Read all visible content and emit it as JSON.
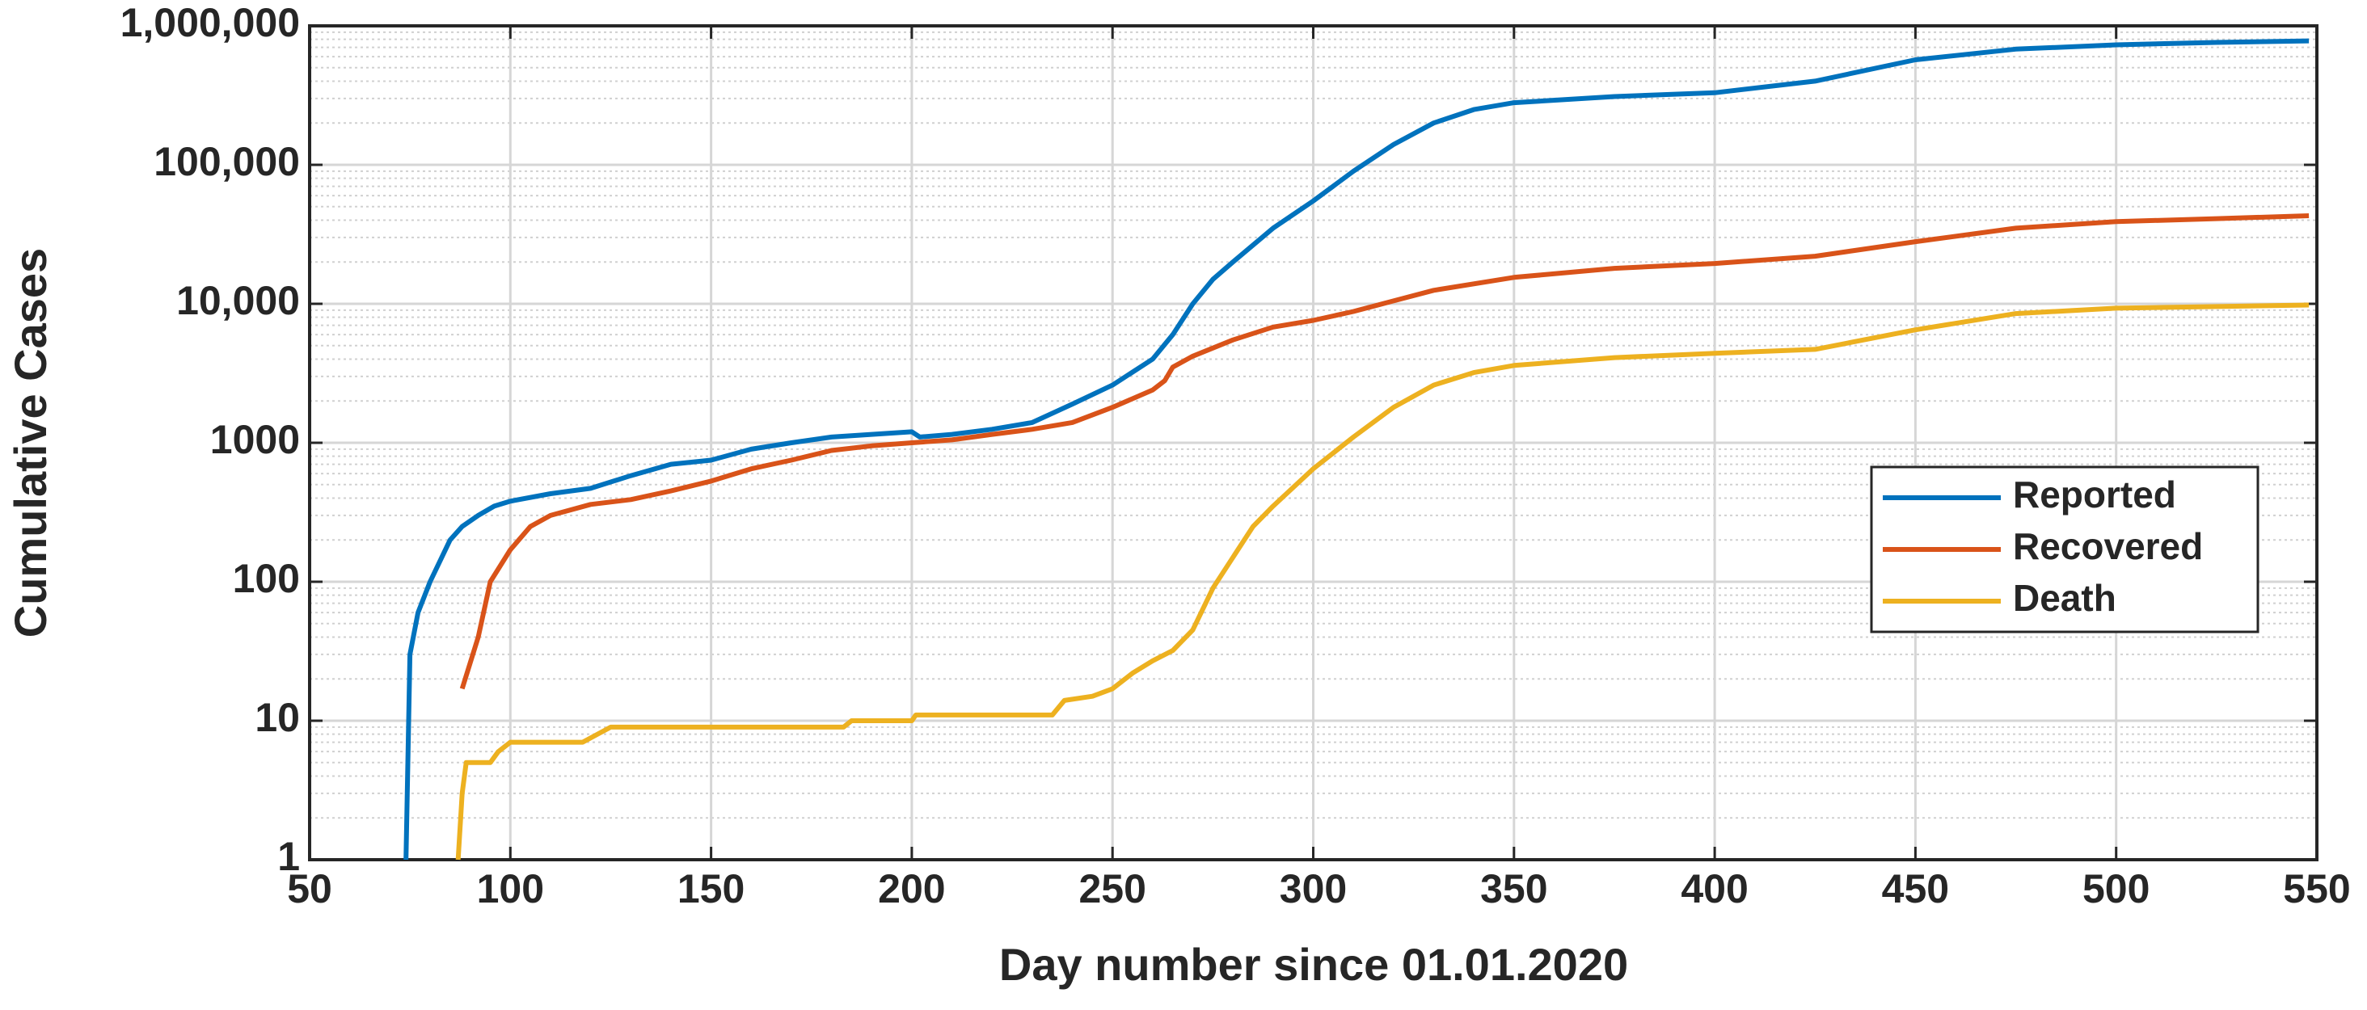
{
  "chart_data": {
    "type": "line",
    "x_label": "Day number since 01.01.2020",
    "y_label": "Cumulative Cases",
    "xlim": [
      50,
      550
    ],
    "xticks": [
      50,
      100,
      150,
      200,
      250,
      300,
      350,
      400,
      450,
      500,
      550
    ],
    "ylim": [
      1,
      1000000
    ],
    "y_scale": "log",
    "yticks": [
      1,
      10,
      100,
      {
        "value": 1000,
        "label": "1000"
      },
      {
        "value": 10000,
        "label": "10,000"
      },
      {
        "value": 100000,
        "label": "100,000"
      },
      {
        "value": 1000000,
        "label": "1,000,000"
      }
    ],
    "grid": true,
    "legend": "right",
    "series": [
      {
        "name": "Reported",
        "color": "#0072bd",
        "x": [
          74,
          75,
          77,
          80,
          85,
          88,
          92,
          96,
          100,
          110,
          120,
          130,
          140,
          150,
          160,
          170,
          180,
          190,
          200,
          202,
          210,
          220,
          230,
          240,
          250,
          260,
          265,
          270,
          275,
          280,
          290,
          300,
          310,
          320,
          330,
          340,
          350,
          375,
          400,
          425,
          450,
          475,
          500,
          525,
          548
        ],
        "values": [
          1,
          30,
          60,
          100,
          200,
          250,
          300,
          350,
          380,
          430,
          470,
          580,
          700,
          750,
          900,
          1000,
          1100,
          1150,
          1200,
          1100,
          1150,
          1250,
          1400,
          1900,
          2600,
          4000,
          6000,
          10000,
          15000,
          20000,
          35000,
          55000,
          90000,
          140000,
          200000,
          250000,
          280000,
          310000,
          330000,
          400000,
          570000,
          680000,
          730000,
          760000,
          780000
        ]
      },
      {
        "name": "Recovered",
        "color": "#d95319",
        "x": [
          88,
          92,
          95,
          100,
          105,
          110,
          120,
          130,
          140,
          150,
          160,
          170,
          180,
          190,
          200,
          210,
          220,
          230,
          240,
          250,
          260,
          263,
          265,
          270,
          280,
          290,
          300,
          310,
          320,
          330,
          350,
          375,
          400,
          425,
          450,
          475,
          500,
          525,
          548
        ],
        "values": [
          17,
          40,
          100,
          170,
          250,
          300,
          360,
          390,
          450,
          530,
          650,
          750,
          880,
          950,
          1000,
          1050,
          1150,
          1250,
          1400,
          1800,
          2400,
          2800,
          3500,
          4200,
          5500,
          6800,
          7600,
          8800,
          10500,
          12500,
          15500,
          18000,
          19500,
          22000,
          28000,
          35000,
          39000,
          41000,
          43000
        ]
      },
      {
        "name": "Death",
        "color": "#edb120",
        "x": [
          87,
          88,
          89,
          95,
          97,
          100,
          118,
          125,
          183,
          185,
          200,
          201,
          235,
          238,
          245,
          250,
          255,
          260,
          265,
          270,
          275,
          280,
          285,
          290,
          300,
          310,
          320,
          330,
          340,
          350,
          375,
          400,
          425,
          450,
          475,
          500,
          548
        ],
        "values": [
          1,
          3,
          5,
          5,
          6,
          7,
          7,
          9,
          9,
          10,
          10,
          11,
          11,
          14,
          15,
          17,
          22,
          27,
          32,
          45,
          90,
          150,
          250,
          350,
          650,
          1100,
          1800,
          2600,
          3200,
          3600,
          4100,
          4400,
          4700,
          6500,
          8500,
          9300,
          9800
        ]
      }
    ]
  }
}
